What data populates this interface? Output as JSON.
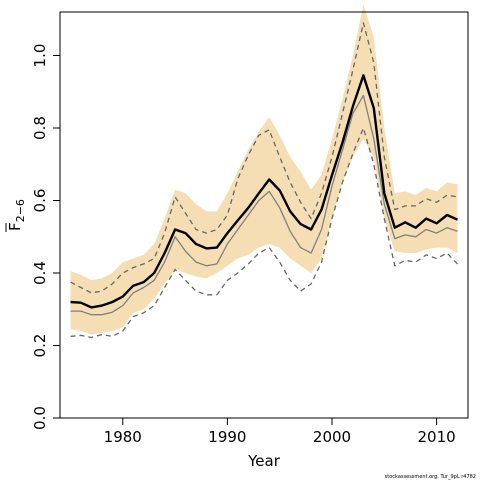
{
  "chart_data": {
    "type": "line",
    "title": "",
    "xlabel": "Year",
    "ylabel": "F̄ 2−6",
    "ylabel_main": "F",
    "ylabel_sub": "2−6",
    "xlim": [
      1974,
      2013
    ],
    "ylim": [
      0,
      1.12
    ],
    "xticks": [
      1980,
      1990,
      2000,
      2010
    ],
    "yticks": [
      0.0,
      0.2,
      0.4,
      0.6,
      0.8,
      1.0
    ],
    "ytick_labels": [
      "0.0",
      "0.2",
      "0.4",
      "0.6",
      "0.8",
      "1.0"
    ],
    "grid": false,
    "legend": "none",
    "source_note": "stockassessment.org, Tur_9pL r4782",
    "x": [
      1975,
      1976,
      1977,
      1978,
      1979,
      1980,
      1981,
      1982,
      1983,
      1984,
      1985,
      1986,
      1987,
      1988,
      1989,
      1990,
      1991,
      1992,
      1993,
      1994,
      1995,
      1996,
      1997,
      1998,
      1999,
      2000,
      2001,
      2002,
      2003,
      2004,
      2005,
      2006,
      2007,
      2008,
      2009,
      2010,
      2011,
      2012
    ],
    "band": {
      "color": "#f5deb3",
      "lower": [
        0.245,
        0.24,
        0.23,
        0.235,
        0.24,
        0.25,
        0.29,
        0.3,
        0.33,
        0.37,
        0.41,
        0.4,
        0.39,
        0.385,
        0.4,
        0.42,
        0.44,
        0.45,
        0.47,
        0.48,
        0.47,
        0.44,
        0.42,
        0.4,
        0.44,
        0.55,
        0.65,
        0.72,
        0.77,
        0.72,
        0.55,
        0.46,
        0.455,
        0.455,
        0.465,
        0.47,
        0.47,
        0.455
      ],
      "upper": [
        0.405,
        0.395,
        0.38,
        0.385,
        0.4,
        0.43,
        0.44,
        0.45,
        0.48,
        0.55,
        0.63,
        0.62,
        0.59,
        0.57,
        0.57,
        0.62,
        0.68,
        0.74,
        0.79,
        0.83,
        0.78,
        0.72,
        0.68,
        0.63,
        0.67,
        0.77,
        0.88,
        1.0,
        1.14,
        1.05,
        0.8,
        0.62,
        0.625,
        0.615,
        0.635,
        0.625,
        0.65,
        0.645
      ]
    },
    "series": [
      {
        "role": "estimate",
        "color": "#000000",
        "width": 2.4,
        "dash": "",
        "values": [
          0.32,
          0.318,
          0.305,
          0.31,
          0.32,
          0.335,
          0.365,
          0.375,
          0.4,
          0.455,
          0.52,
          0.51,
          0.48,
          0.468,
          0.47,
          0.51,
          0.545,
          0.58,
          0.62,
          0.658,
          0.628,
          0.57,
          0.535,
          0.52,
          0.575,
          0.67,
          0.76,
          0.86,
          0.945,
          0.855,
          0.62,
          0.525,
          0.54,
          0.525,
          0.55,
          0.537,
          0.56,
          0.547
        ]
      },
      {
        "role": "lower-dashed",
        "color": "#666666",
        "width": 1.3,
        "dash": "5,4",
        "values": [
          0.225,
          0.228,
          0.222,
          0.23,
          0.225,
          0.24,
          0.28,
          0.29,
          0.31,
          0.36,
          0.41,
          0.38,
          0.35,
          0.34,
          0.34,
          0.38,
          0.4,
          0.425,
          0.455,
          0.47,
          0.43,
          0.38,
          0.35,
          0.37,
          0.43,
          0.55,
          0.65,
          0.73,
          0.8,
          0.7,
          0.55,
          0.42,
          0.435,
          0.43,
          0.45,
          0.44,
          0.455,
          0.425
        ]
      },
      {
        "role": "upper-dashed",
        "color": "#666666",
        "width": 1.3,
        "dash": "5,4",
        "values": [
          0.375,
          0.36,
          0.345,
          0.35,
          0.37,
          0.4,
          0.415,
          0.425,
          0.44,
          0.51,
          0.61,
          0.565,
          0.52,
          0.51,
          0.52,
          0.56,
          0.66,
          0.725,
          0.78,
          0.795,
          0.72,
          0.65,
          0.595,
          0.55,
          0.62,
          0.72,
          0.84,
          0.96,
          1.09,
          0.98,
          0.72,
          0.575,
          0.585,
          0.585,
          0.605,
          0.595,
          0.615,
          0.61
        ]
      },
      {
        "role": "alt-estimate",
        "color": "#808080",
        "width": 1.3,
        "dash": "",
        "values": [
          0.295,
          0.295,
          0.285,
          0.285,
          0.292,
          0.31,
          0.345,
          0.36,
          0.38,
          0.43,
          0.5,
          0.46,
          0.43,
          0.42,
          0.425,
          0.48,
          0.52,
          0.56,
          0.6,
          0.625,
          0.58,
          0.515,
          0.47,
          0.455,
          0.52,
          0.64,
          0.74,
          0.84,
          0.89,
          0.77,
          0.59,
          0.495,
          0.505,
          0.5,
          0.52,
          0.51,
          0.525,
          0.515
        ]
      }
    ]
  }
}
